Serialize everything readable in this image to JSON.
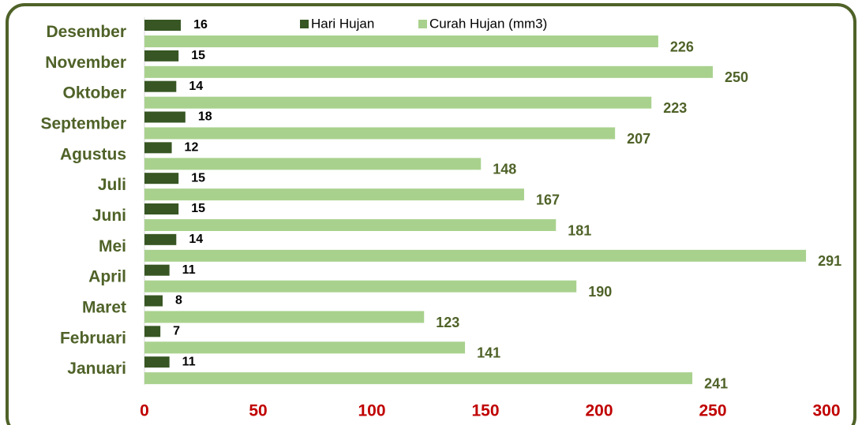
{
  "chart_data": {
    "type": "bar",
    "orientation": "horizontal",
    "categories": [
      "Januari",
      "Februari",
      "Maret",
      "April",
      "Mei",
      "Juni",
      "Juli",
      "Agustus",
      "September",
      "Oktober",
      "November",
      "Desember"
    ],
    "series": [
      {
        "name": "Hari Hujan",
        "color": "#375623",
        "values": [
          11,
          7,
          8,
          11,
          14,
          15,
          15,
          12,
          18,
          14,
          15,
          16
        ]
      },
      {
        "name": "Curah Hujan (mm3)",
        "color": "#a9d18e",
        "values": [
          241,
          141,
          123,
          190,
          291,
          181,
          167,
          148,
          207,
          223,
          250,
          226
        ]
      }
    ],
    "xlim": [
      0,
      300
    ],
    "xticks": [
      0,
      50,
      100,
      150,
      200,
      250,
      300
    ],
    "legend": "top"
  }
}
